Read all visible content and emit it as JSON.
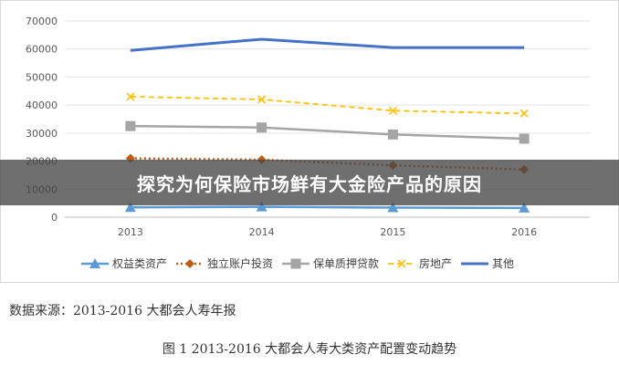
{
  "banner": {
    "title": "探究为何保险市场鲜有大金险产品的原因"
  },
  "source_note": "数据来源：2013-2016 大都会人寿年报",
  "caption": "图 1    2013-2016 大都会人寿大类资产配置变动趋势",
  "chart_data": {
    "type": "line",
    "title": "",
    "xlabel": "",
    "ylabel": "",
    "categories": [
      "2013",
      "2014",
      "2015",
      "2016"
    ],
    "ylim": [
      0,
      70000
    ],
    "yticks": [
      0,
      10000,
      20000,
      30000,
      40000,
      50000,
      60000,
      70000
    ],
    "grid": true,
    "legend_position": "bottom",
    "series": [
      {
        "name": "权益类资产",
        "values": [
          3500,
          3700,
          3400,
          3300
        ],
        "color": "#5b9bd5",
        "marker": "triangle",
        "dash": "solid"
      },
      {
        "name": "独立账户投资",
        "values": [
          21000,
          20500,
          18500,
          17000
        ],
        "color": "#c55a11",
        "marker": "diamond",
        "dash": "dot"
      },
      {
        "name": "保单质押贷款",
        "values": [
          32500,
          32000,
          29500,
          28000
        ],
        "color": "#a5a5a5",
        "marker": "square",
        "dash": "solid"
      },
      {
        "name": "房地产",
        "values": [
          43000,
          42000,
          38000,
          37000
        ],
        "color": "#ffc000",
        "marker": "x",
        "dash": "dash"
      },
      {
        "name": "其他",
        "values": [
          59500,
          63500,
          60500,
          60500
        ],
        "color": "#4472c4",
        "marker": "none",
        "dash": "solid"
      }
    ]
  }
}
